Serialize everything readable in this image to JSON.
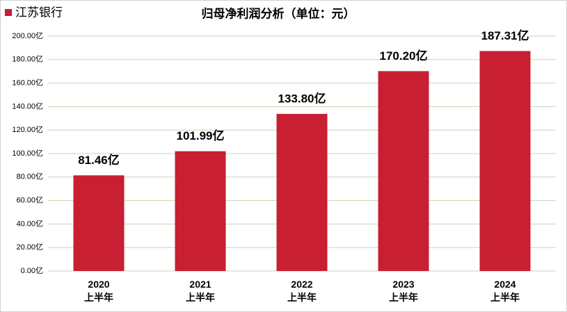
{
  "chart_data": {
    "type": "bar",
    "title": "归母净利润分析（单位：元）",
    "categories": [
      "2020\n上半年",
      "2021\n上半年",
      "2022\n上半年",
      "2023\n上半年",
      "2024\n上半年"
    ],
    "series": [
      {
        "name": "江苏银行",
        "color": "#c81f32",
        "values": [
          81.46,
          101.99,
          133.8,
          170.2,
          187.31
        ],
        "value_labels": [
          "81.46亿",
          "101.99亿",
          "133.80亿",
          "170.20亿",
          "187.31亿"
        ]
      }
    ],
    "ylim": [
      0,
      200
    ],
    "yticks": [
      {
        "value": 0,
        "label": "0.00亿"
      },
      {
        "value": 20,
        "label": "20.00亿"
      },
      {
        "value": 40,
        "label": "40.00亿"
      },
      {
        "value": 60,
        "label": "60.00亿"
      },
      {
        "value": 80,
        "label": "80.00亿"
      },
      {
        "value": 100,
        "label": "100.00亿"
      },
      {
        "value": 120,
        "label": "120.00亿"
      },
      {
        "value": 140,
        "label": "140.00亿"
      },
      {
        "value": 160,
        "label": "160.00亿"
      },
      {
        "value": 180,
        "label": "180.00亿"
      },
      {
        "value": 200,
        "label": "200.00亿"
      }
    ],
    "grid": true,
    "legend": "top-left"
  }
}
